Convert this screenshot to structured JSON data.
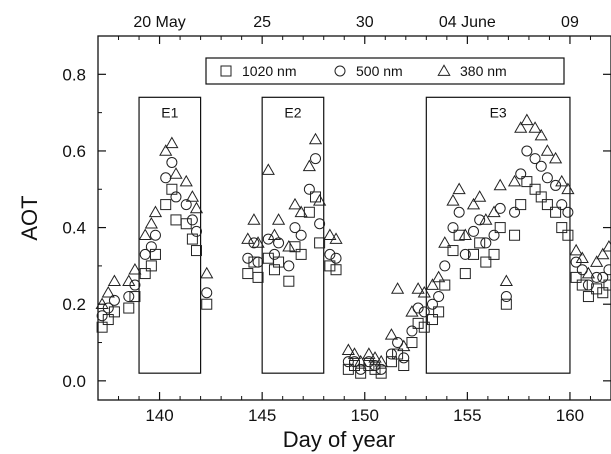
{
  "chart_data": {
    "type": "scatter",
    "xlabel": "Day of year",
    "ylabel": "AOT",
    "xlim": [
      137,
      162
    ],
    "ylim": [
      -0.05,
      0.9
    ],
    "x_ticks": [
      140,
      145,
      150,
      155,
      160
    ],
    "x_tick_labels": [
      "140",
      "145",
      "150",
      "155",
      "160"
    ],
    "y_ticks": [
      0.0,
      0.2,
      0.4,
      0.6,
      0.8
    ],
    "y_tick_labels": [
      "0.0",
      "0.2",
      "0.4",
      "0.6",
      "0.8"
    ],
    "top_axis": {
      "ticks": [
        140,
        145,
        150,
        155,
        160
      ],
      "labels": [
        "20 May",
        "25",
        "30",
        "04 June",
        "09"
      ]
    },
    "legend": {
      "placement": "top-center",
      "entries": [
        {
          "label": "1020 nm",
          "marker": "square"
        },
        {
          "label": "500 nm",
          "marker": "circle"
        },
        {
          "label": "380 nm",
          "marker": "triangle"
        }
      ]
    },
    "events": [
      {
        "label": "E1",
        "x_range": [
          139.0,
          142.0
        ],
        "y_range": [
          0.02,
          0.74
        ]
      },
      {
        "label": "E2",
        "x_range": [
          145.0,
          148.0
        ],
        "y_range": [
          0.02,
          0.74
        ]
      },
      {
        "label": "E3",
        "x_range": [
          153.0,
          160.0
        ],
        "y_range": [
          0.02,
          0.74
        ]
      }
    ],
    "series": [
      {
        "name": "1020 nm",
        "marker": "square",
        "x": [
          137.2,
          137.5,
          137.8,
          138.5,
          138.8,
          139.3,
          139.6,
          139.8,
          140.3,
          140.6,
          140.8,
          141.3,
          141.6,
          141.8,
          142.3,
          144.3,
          144.6,
          144.8,
          145.3,
          145.6,
          145.8,
          146.3,
          146.6,
          146.9,
          147.3,
          147.6,
          147.8,
          148.3,
          148.6,
          149.2,
          149.5,
          149.8,
          150.2,
          150.5,
          150.8,
          151.3,
          151.6,
          151.9,
          152.3,
          152.6,
          152.9,
          153.3,
          153.6,
          153.9,
          154.3,
          154.6,
          154.9,
          155.3,
          155.6,
          155.9,
          156.3,
          156.6,
          156.9,
          157.3,
          157.6,
          157.9,
          158.3,
          158.6,
          158.9,
          159.3,
          159.6,
          159.9,
          160.3,
          160.6,
          160.9,
          161.3,
          161.6,
          161.9
        ],
        "y": [
          0.14,
          0.16,
          0.18,
          0.19,
          0.22,
          0.28,
          0.3,
          0.33,
          0.46,
          0.5,
          0.42,
          0.41,
          0.37,
          0.34,
          0.2,
          0.28,
          0.31,
          0.27,
          0.32,
          0.29,
          0.31,
          0.26,
          0.35,
          0.33,
          0.44,
          0.48,
          0.36,
          0.3,
          0.29,
          0.03,
          0.04,
          0.02,
          0.04,
          0.03,
          0.02,
          0.05,
          0.07,
          0.04,
          0.1,
          0.15,
          0.14,
          0.16,
          0.18,
          0.25,
          0.34,
          0.38,
          0.28,
          0.33,
          0.36,
          0.31,
          0.33,
          0.4,
          0.2,
          0.38,
          0.46,
          0.52,
          0.5,
          0.48,
          0.46,
          0.44,
          0.4,
          0.38,
          0.27,
          0.25,
          0.22,
          0.24,
          0.23,
          0.25
        ]
      },
      {
        "name": "500 nm",
        "marker": "circle",
        "x": [
          137.2,
          137.5,
          137.8,
          138.5,
          138.8,
          139.3,
          139.6,
          139.8,
          140.3,
          140.6,
          140.8,
          141.3,
          141.6,
          141.8,
          142.3,
          144.3,
          144.6,
          144.8,
          145.3,
          145.6,
          145.8,
          146.3,
          146.6,
          146.9,
          147.3,
          147.6,
          147.8,
          148.3,
          148.6,
          149.2,
          149.5,
          149.8,
          150.2,
          150.5,
          150.8,
          151.3,
          151.6,
          151.9,
          152.3,
          152.6,
          152.9,
          153.3,
          153.6,
          153.9,
          154.3,
          154.6,
          154.9,
          155.3,
          155.6,
          155.9,
          156.3,
          156.6,
          156.9,
          157.3,
          157.6,
          157.9,
          158.3,
          158.6,
          158.9,
          159.3,
          159.6,
          159.9,
          160.3,
          160.6,
          160.9,
          161.3,
          161.6,
          161.9
        ],
        "y": [
          0.17,
          0.19,
          0.21,
          0.22,
          0.25,
          0.33,
          0.35,
          0.38,
          0.53,
          0.57,
          0.48,
          0.46,
          0.42,
          0.39,
          0.23,
          0.32,
          0.36,
          0.31,
          0.37,
          0.33,
          0.36,
          0.3,
          0.4,
          0.38,
          0.5,
          0.58,
          0.41,
          0.33,
          0.32,
          0.05,
          0.05,
          0.03,
          0.05,
          0.04,
          0.03,
          0.07,
          0.1,
          0.06,
          0.13,
          0.19,
          0.18,
          0.2,
          0.22,
          0.3,
          0.4,
          0.44,
          0.33,
          0.39,
          0.42,
          0.36,
          0.38,
          0.45,
          0.22,
          0.44,
          0.54,
          0.6,
          0.58,
          0.56,
          0.53,
          0.51,
          0.46,
          0.44,
          0.31,
          0.29,
          0.25,
          0.27,
          0.27,
          0.29
        ]
      },
      {
        "name": "380 nm",
        "marker": "triangle",
        "x": [
          137.2,
          137.5,
          137.8,
          138.5,
          138.8,
          139.3,
          139.6,
          139.8,
          140.3,
          140.6,
          140.8,
          141.3,
          141.6,
          141.8,
          142.3,
          144.3,
          144.6,
          144.8,
          145.3,
          145.6,
          145.8,
          146.3,
          146.6,
          146.9,
          147.3,
          147.6,
          147.8,
          148.3,
          148.6,
          149.2,
          149.5,
          149.8,
          150.2,
          150.5,
          150.8,
          151.3,
          151.6,
          151.9,
          152.3,
          152.6,
          152.9,
          153.3,
          153.6,
          153.9,
          154.3,
          154.6,
          154.9,
          155.3,
          155.6,
          155.9,
          156.3,
          156.6,
          156.9,
          157.3,
          157.6,
          157.9,
          158.3,
          158.6,
          158.9,
          159.3,
          159.6,
          159.9,
          160.3,
          160.6,
          160.9,
          161.3,
          161.6,
          161.9
        ],
        "y": [
          0.2,
          0.23,
          0.26,
          0.26,
          0.29,
          0.38,
          0.41,
          0.44,
          0.6,
          0.62,
          0.54,
          0.52,
          0.48,
          0.45,
          0.28,
          0.37,
          0.42,
          0.36,
          0.55,
          0.38,
          0.42,
          0.35,
          0.46,
          0.44,
          0.56,
          0.63,
          0.47,
          0.38,
          0.37,
          0.08,
          0.07,
          0.05,
          0.07,
          0.06,
          0.05,
          0.12,
          0.24,
          0.09,
          0.18,
          0.24,
          0.23,
          0.25,
          0.27,
          0.36,
          0.47,
          0.5,
          0.38,
          0.46,
          0.48,
          0.42,
          0.44,
          0.51,
          0.26,
          0.52,
          0.66,
          0.68,
          0.66,
          0.64,
          0.6,
          0.58,
          0.52,
          0.5,
          0.34,
          0.32,
          0.28,
          0.31,
          0.33,
          0.35
        ]
      }
    ],
    "grid": false
  }
}
